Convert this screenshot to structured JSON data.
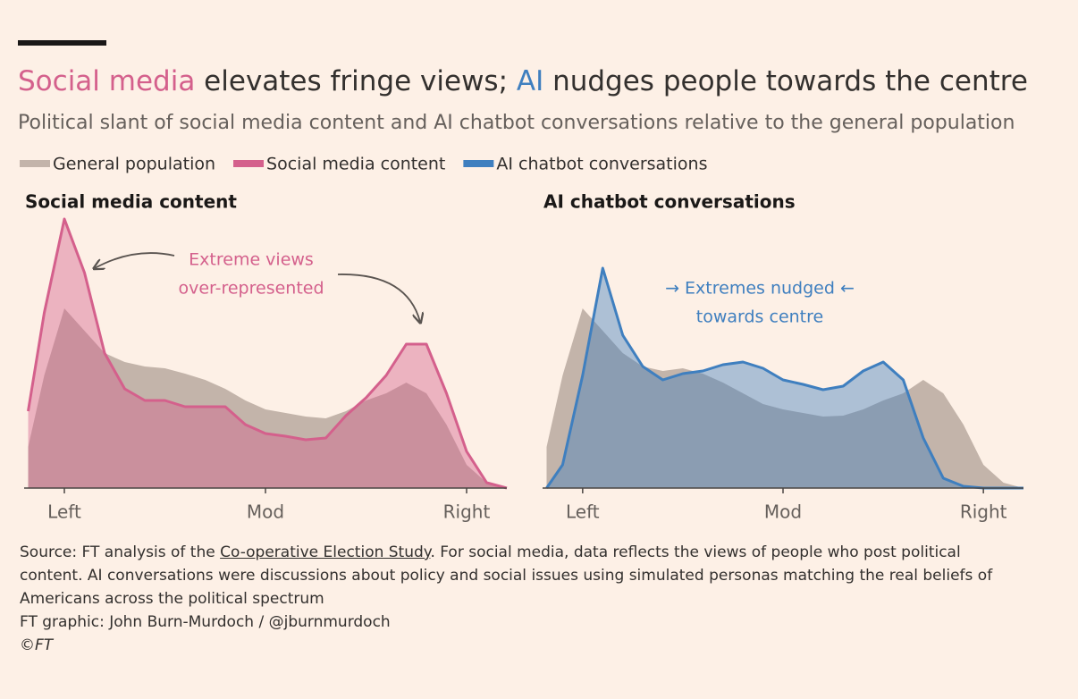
{
  "header": {
    "title_parts": [
      "Social media",
      " elevates fringe views; ",
      "AI",
      " nudges people towards the centre"
    ],
    "subtitle": "Political slant of social media content and AI chatbot conversations relative to the general population"
  },
  "chart_data": [
    {
      "type": "area",
      "title": "Social media content",
      "annotation": [
        "Extreme views",
        "over-represented"
      ],
      "x": [
        -1.18,
        -1.1,
        -1.0,
        -0.9,
        -0.8,
        -0.7,
        -0.6,
        -0.5,
        -0.4,
        -0.3,
        -0.2,
        -0.1,
        0,
        0.1,
        0.2,
        0.3,
        0.4,
        0.5,
        0.6,
        0.7,
        0.8,
        0.9,
        1.0,
        1.1,
        1.2
      ],
      "xlim": [
        -1.2,
        1.2
      ],
      "xticks": [
        {
          "value": -1,
          "label": "Left"
        },
        {
          "value": 0,
          "label": "Mod"
        },
        {
          "value": 1,
          "label": "Right"
        }
      ],
      "ylim": [
        0,
        310
      ],
      "series": [
        {
          "name": "General population",
          "color": "#c3b4aa",
          "values": [
            46,
            126,
            201,
            176,
            151,
            141,
            136,
            134,
            128,
            121,
            111,
            98,
            88,
            84,
            80,
            78,
            86,
            98,
            106,
            118,
            106,
            71,
            26,
            6,
            0
          ]
        },
        {
          "name": "Social media content",
          "color": "#d4608c",
          "values": [
            86,
            196,
            301,
            241,
            151,
            111,
            98,
            98,
            91,
            91,
            91,
            71,
            61,
            58,
            54,
            56,
            81,
            101,
            126,
            161,
            161,
            106,
            41,
            6,
            0
          ]
        }
      ]
    },
    {
      "type": "area",
      "title": "AI chatbot conversations",
      "annotation": [
        "→ Extremes nudged ←",
        "towards centre"
      ],
      "x": [
        -1.18,
        -1.1,
        -1.0,
        -0.9,
        -0.8,
        -0.7,
        -0.6,
        -0.5,
        -0.4,
        -0.3,
        -0.2,
        -0.1,
        0,
        0.1,
        0.2,
        0.3,
        0.4,
        0.5,
        0.6,
        0.7,
        0.8,
        0.9,
        1.0,
        1.1,
        1.2
      ],
      "xlim": [
        -1.2,
        1.2
      ],
      "xticks": [
        {
          "value": -1,
          "label": "Left"
        },
        {
          "value": 0,
          "label": "Mod"
        },
        {
          "value": 1,
          "label": "Right"
        }
      ],
      "ylim": [
        0,
        310
      ],
      "series": [
        {
          "color": "#c3b4aa",
          "values": [
            46,
            126,
            201,
            176,
            151,
            136,
            131,
            134,
            128,
            118,
            106,
            94,
            88,
            84,
            80,
            81,
            88,
            98,
            106,
            121,
            106,
            71,
            26,
            6,
            0
          ]
        },
        {
          "name": "AI chatbot conversations",
          "color": "#3f7fbf",
          "values": [
            0,
            26,
            126,
            246,
            171,
            136,
            121,
            128,
            131,
            138,
            141,
            134,
            121,
            116,
            110,
            114,
            131,
            141,
            121,
            56,
            11,
            2,
            0,
            0,
            0
          ]
        }
      ]
    }
  ],
  "footer": {
    "source_parts": [
      "Source: FT analysis of the ",
      "Co-operative Election Study",
      ". For social media, data reflects the views of people who post political content. AI conversations were discussions about policy and social issues using simulated personas matching the real beliefs of Americans across the political spectrum"
    ],
    "credit": "FT graphic: John Burn-Murdoch / @jburnmurdoch",
    "copyright": "©FT"
  }
}
